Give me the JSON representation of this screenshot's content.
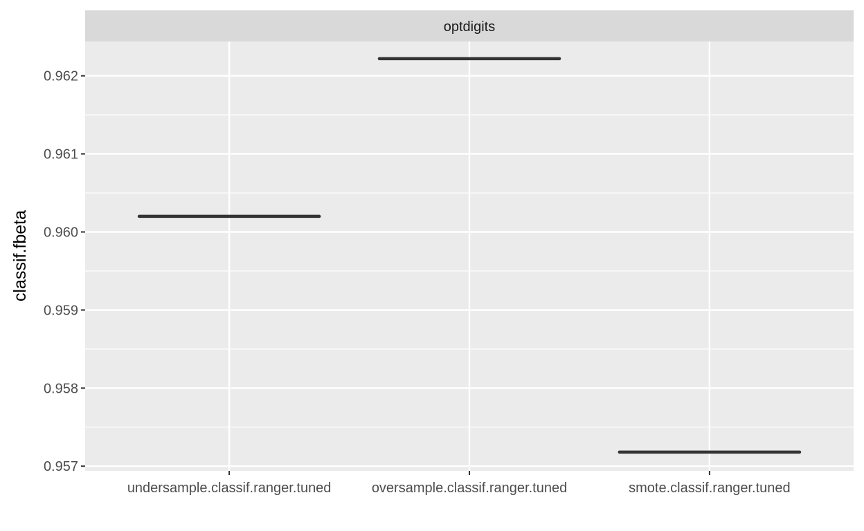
{
  "chart_data": {
    "type": "boxplot",
    "facet_label": "optdigits",
    "ylabel": "classif.fbeta",
    "xlabel": "",
    "categories": [
      "undersample.classif.ranger.tuned",
      "oversample.classif.ranger.tuned",
      "smote.classif.ranger.tuned"
    ],
    "values": [
      0.9602,
      0.96222,
      0.95718
    ],
    "y_ticks": [
      0.957,
      0.958,
      0.959,
      0.96,
      0.961,
      0.962
    ],
    "y_tick_labels": [
      "0.957",
      "0.958",
      "0.959",
      "0.960",
      "0.961",
      "0.962"
    ],
    "ylim": [
      0.95694,
      0.96244
    ],
    "grid": true,
    "colors": {
      "panel_background": "#ebebeb",
      "strip_background": "#d9d9d9",
      "grid": "#ffffff",
      "box_line": "#333333"
    }
  }
}
